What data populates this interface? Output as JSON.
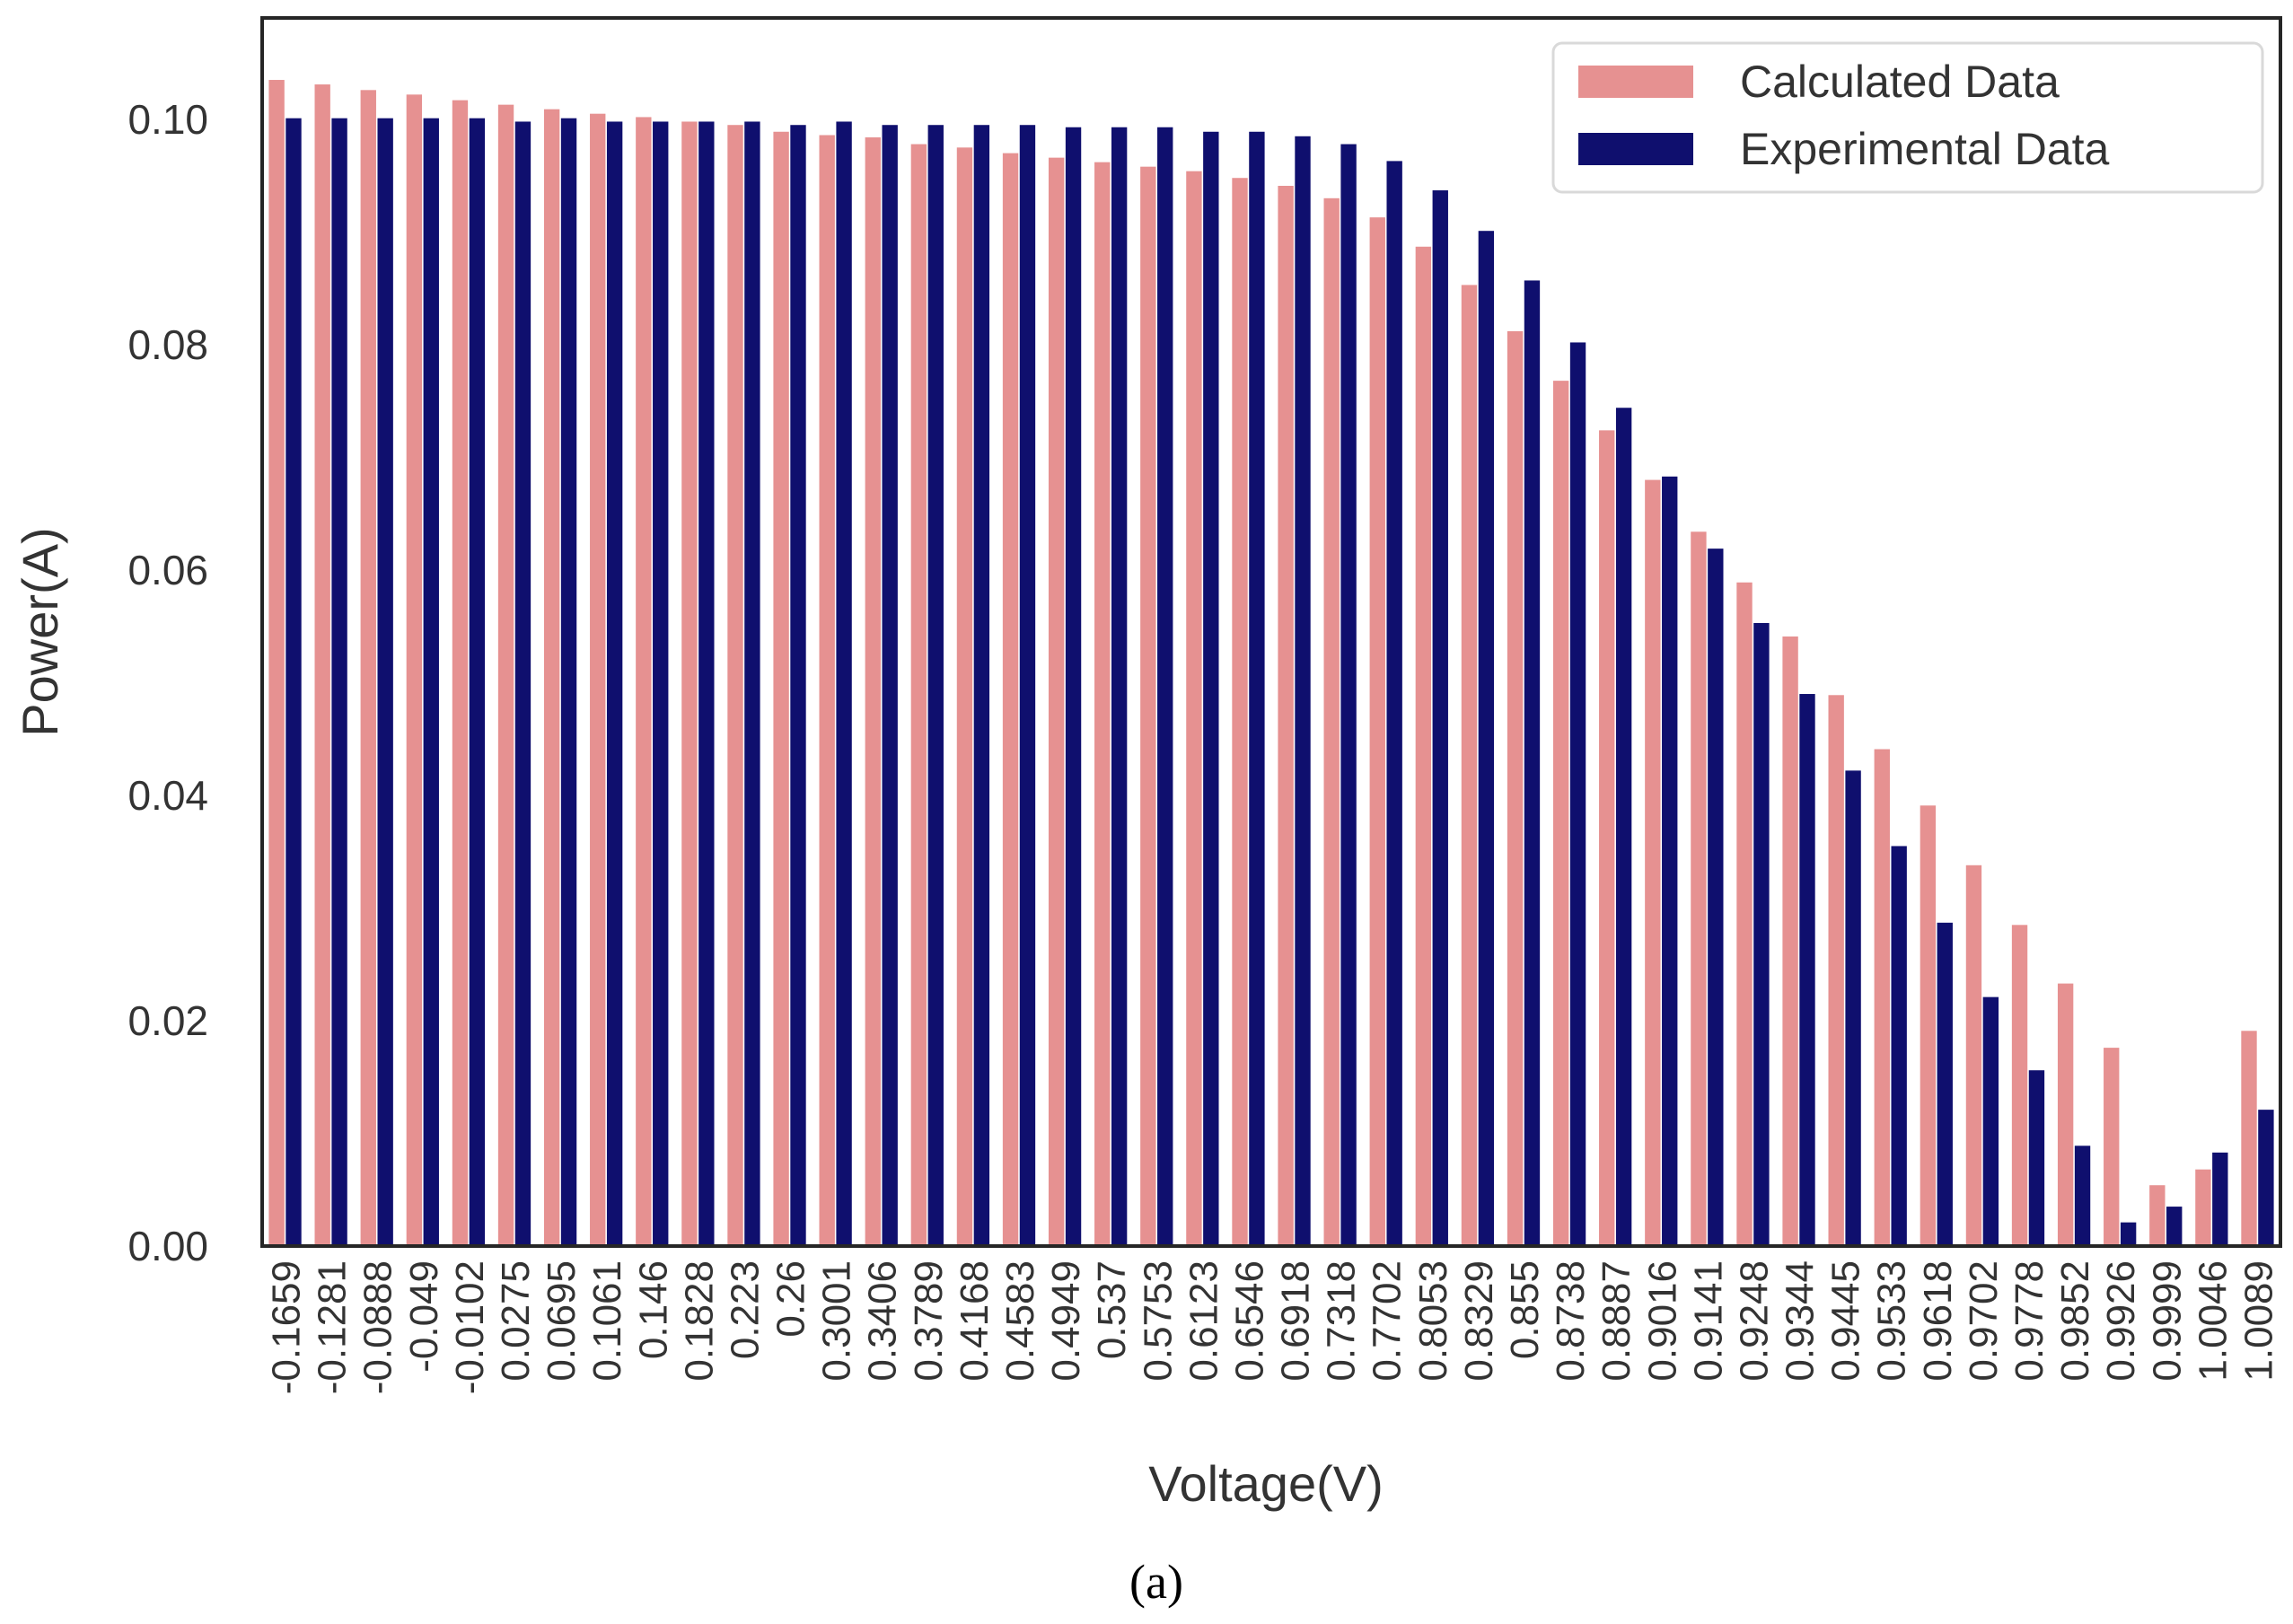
{
  "chart_data": {
    "type": "bar",
    "title": "",
    "xlabel": "Voltage(V)",
    "ylabel": "Power(A)",
    "ylim": [
      0,
      0.109
    ],
    "yticks": [
      0.0,
      0.02,
      0.04,
      0.06,
      0.08,
      0.1
    ],
    "ytick_labels": [
      "0.00",
      "0.02",
      "0.04",
      "0.06",
      "0.08",
      "0.10"
    ],
    "grid": false,
    "legend_position": "top-right",
    "categories": [
      "-0.1659",
      "-0.1281",
      "-0.0888",
      "-0.049",
      "-0.0102",
      "0.0275",
      "0.0695",
      "0.1061",
      "0.146",
      "0.1828",
      "0.223",
      "0.26",
      "0.3001",
      "0.3406",
      "0.3789",
      "0.4168",
      "0.4583",
      "0.4949",
      "0.537",
      "0.5753",
      "0.6123",
      "0.6546",
      "0.6918",
      "0.7318",
      "0.7702",
      "0.8053",
      "0.8329",
      "0.855",
      "0.8738",
      "0.8887",
      "0.9016",
      "0.9141",
      "0.9248",
      "0.9344",
      "0.9445",
      "0.9533",
      "0.9618",
      "0.9702",
      "0.9778",
      "0.9852",
      "0.9926",
      "0.9999",
      "1.0046",
      "1.0089"
    ],
    "series": [
      {
        "name": "Calculated Data",
        "color": "#E69191",
        "values": [
          0.1035,
          0.1031,
          0.1026,
          0.1022,
          0.1017,
          0.1013,
          0.1009,
          0.1005,
          0.1002,
          0.0998,
          0.0995,
          0.0989,
          0.0986,
          0.0984,
          0.0978,
          0.0975,
          0.097,
          0.0966,
          0.0962,
          0.0958,
          0.0954,
          0.0948,
          0.0941,
          0.093,
          0.0913,
          0.0887,
          0.0853,
          0.0812,
          0.0768,
          0.0724,
          0.068,
          0.0634,
          0.0589,
          0.0541,
          0.0489,
          0.0441,
          0.0391,
          0.0338,
          0.0285,
          0.0233,
          0.0176,
          0.0054,
          0.0068,
          0.0191
        ]
      },
      {
        "name": "Experimental Data",
        "color": "#0F0F6E",
        "values": [
          0.1001,
          0.1001,
          0.1001,
          0.1001,
          0.1001,
          0.0998,
          0.1001,
          0.0998,
          0.0998,
          0.0998,
          0.0998,
          0.0995,
          0.0998,
          0.0995,
          0.0995,
          0.0995,
          0.0995,
          0.0993,
          0.0993,
          0.0993,
          0.0989,
          0.0989,
          0.0985,
          0.0978,
          0.0963,
          0.0937,
          0.0901,
          0.0857,
          0.0802,
          0.0744,
          0.0683,
          0.0619,
          0.0553,
          0.049,
          0.0422,
          0.0355,
          0.0287,
          0.0221,
          0.0156,
          0.0089,
          0.0021,
          0.0035,
          0.0083,
          0.0121
        ]
      }
    ]
  },
  "caption": "(a)"
}
